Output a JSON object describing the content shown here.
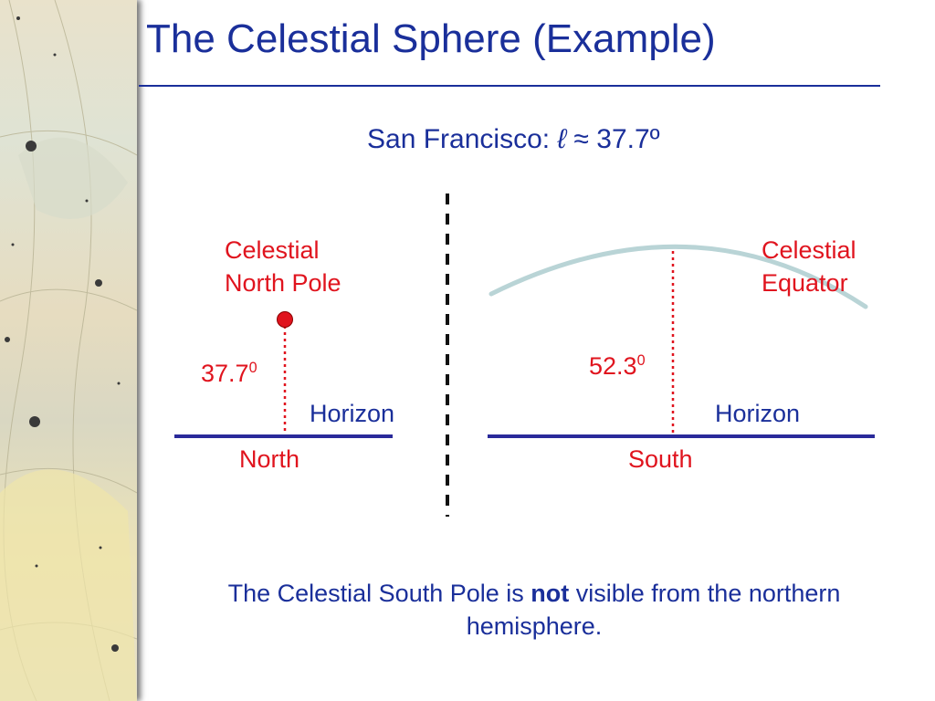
{
  "slide": {
    "title": "The Celestial Sphere (Example)",
    "subtitle": "San Francisco:",
    "latitude_symbol": "ℓ",
    "latitude_value": "≈ 37.7º"
  },
  "left_panel": {
    "pole_label_line1": "Celestial",
    "pole_label_line2": "North Pole",
    "angle_value": "37.7",
    "angle_unit": "0",
    "horizon_label": "Horizon",
    "direction_label": "North"
  },
  "right_panel": {
    "equator_label_line1": "Celestial",
    "equator_label_line2": "Equator",
    "angle_value": "52.3",
    "angle_unit": "0",
    "horizon_label": "Horizon",
    "direction_label": "South"
  },
  "caption": {
    "before": "The Celestial South Pole is ",
    "emphasis": "not",
    "after": " visible from the northern hemisphere."
  },
  "colors": {
    "title_blue": "#1a2f9a",
    "label_red": "#e0141e",
    "horizon_line": "#2a2a9a",
    "equator_arc": "#b9d4d6"
  }
}
